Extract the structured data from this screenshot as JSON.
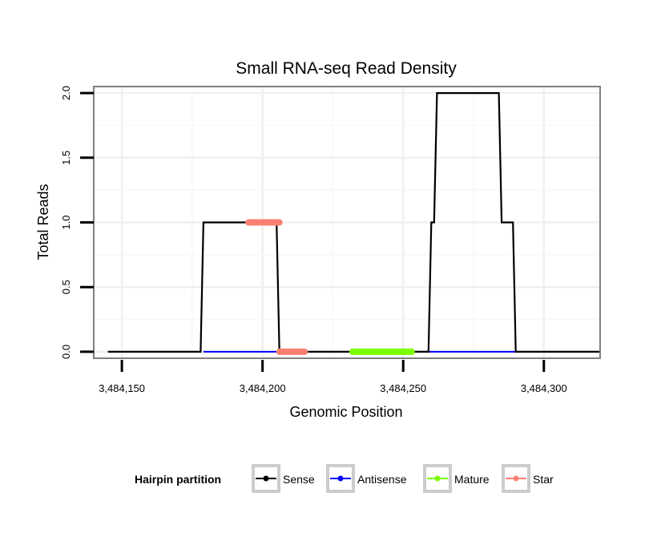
{
  "chart_data": {
    "type": "line",
    "title": "Small RNA-seq Read Density",
    "xlabel": "Genomic Position",
    "ylabel": "Total Reads",
    "xlim": [
      3484140,
      3484320
    ],
    "ylim": [
      -0.05,
      2.05
    ],
    "x_ticks": [
      3484150,
      3484200,
      3484250,
      3484300
    ],
    "x_tick_labels": [
      "3,484,150",
      "3,484,200",
      "3,484,250",
      "3,484,300"
    ],
    "y_ticks": [
      0,
      0.5,
      1,
      1.5,
      2
    ],
    "y_tick_labels": [
      "0.0",
      "0.5",
      "1.0",
      "1.5",
      "2.0"
    ],
    "grid": true,
    "legend": {
      "title": "Hairpin partition",
      "position": "bottom",
      "entries": [
        {
          "name": "Sense",
          "color": "#000000"
        },
        {
          "name": "Antisense",
          "color": "#0000ff"
        },
        {
          "name": "Mature",
          "color": "#7cfc00"
        },
        {
          "name": "Star",
          "color": "#fa8072"
        }
      ]
    },
    "series": [
      {
        "name": "Sense",
        "color": "#000000",
        "x": [
          3484145,
          3484178,
          3484179,
          3484205,
          3484206,
          3484259,
          3484260,
          3484261,
          3484262,
          3484284,
          3484285,
          3484289,
          3484290,
          3484320
        ],
        "y": [
          0,
          0,
          1,
          1,
          0,
          0,
          1,
          1,
          2,
          2,
          1,
          1,
          0,
          0
        ]
      },
      {
        "name": "Antisense",
        "color": "#0000ff",
        "segments": [
          [
            3484179,
            3484206
          ],
          [
            3484253,
            3484290
          ]
        ],
        "y": 0
      },
      {
        "name": "Mature",
        "color": "#7cfc00",
        "segments": [
          [
            3484232,
            3484253
          ]
        ],
        "y": 0
      },
      {
        "name": "Star",
        "color": "#fa8072",
        "segments": [
          [
            3484195,
            3484206
          ],
          [
            3484206,
            3484215
          ]
        ],
        "y_levels": [
          1,
          0
        ]
      }
    ]
  }
}
